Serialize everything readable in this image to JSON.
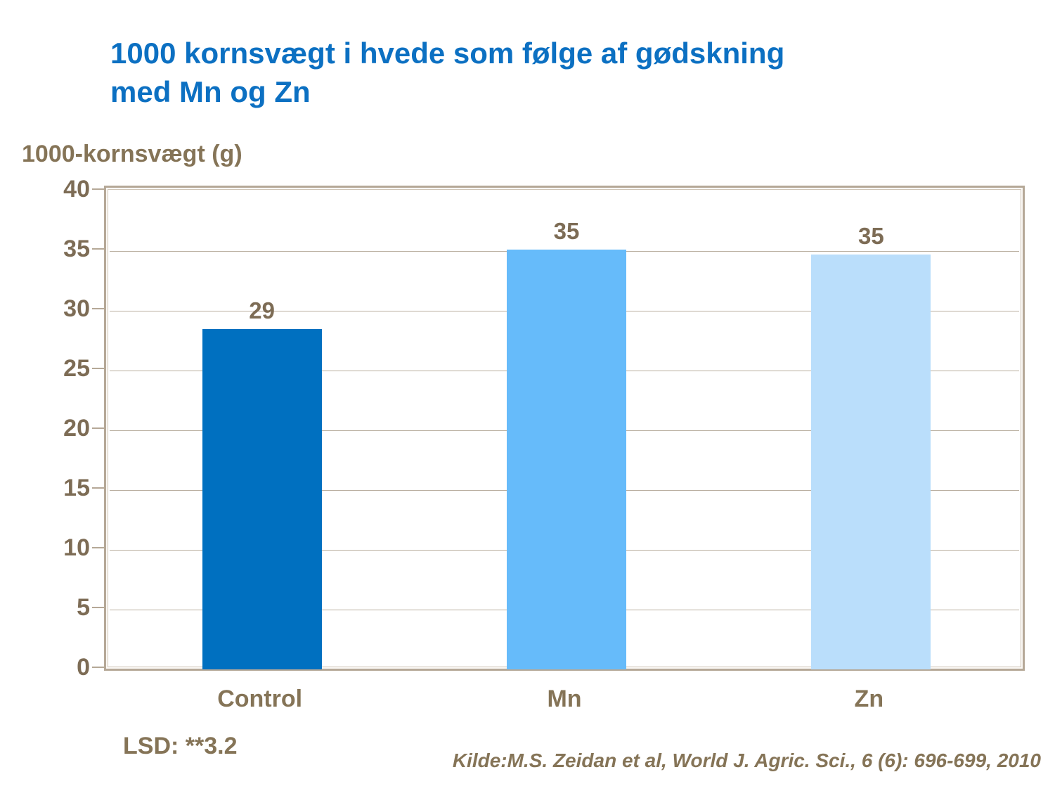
{
  "slide": {
    "title_lines": [
      "1000 kornsvægt i hvede som følge af gødskning",
      "med Mn og Zn"
    ],
    "lsd_note": "LSD: **3.2",
    "source": "Kilde:M.S. Zeidan et al, World J. Agric. Sci., 6 (6): 696-699, 2010"
  },
  "colors": {
    "title_blue": "#0C70C2",
    "text_brown": "#857457",
    "frame_tan": "#B5A897",
    "gridline": "#B9AE9F"
  },
  "chart_data": {
    "type": "bar",
    "title": "1000 kornsvægt i hvede som følge af gødskning med Mn og Zn",
    "xlabel": "",
    "ylabel": "1000-kornsvægt (g)",
    "categories": [
      "Control",
      "Mn",
      "Zn"
    ],
    "values": [
      29,
      35,
      35
    ],
    "data_labels": [
      "29",
      "35",
      "35"
    ],
    "plotted_values": [
      28.5,
      35.1,
      34.7
    ],
    "bar_colors": [
      "#0070C0",
      "#66BBFA",
      "#BADEFB"
    ],
    "ylim": [
      0,
      40
    ],
    "ytick_step": 5,
    "yticks": [
      0,
      5,
      10,
      15,
      20,
      25,
      30,
      35,
      40
    ],
    "grid": true,
    "legend_position": "none",
    "annotations": {
      "lsd": "LSD: **3.2",
      "source": "Kilde:M.S. Zeidan et al, World J. Agric. Sci., 6 (6): 696-699, 2010"
    }
  }
}
